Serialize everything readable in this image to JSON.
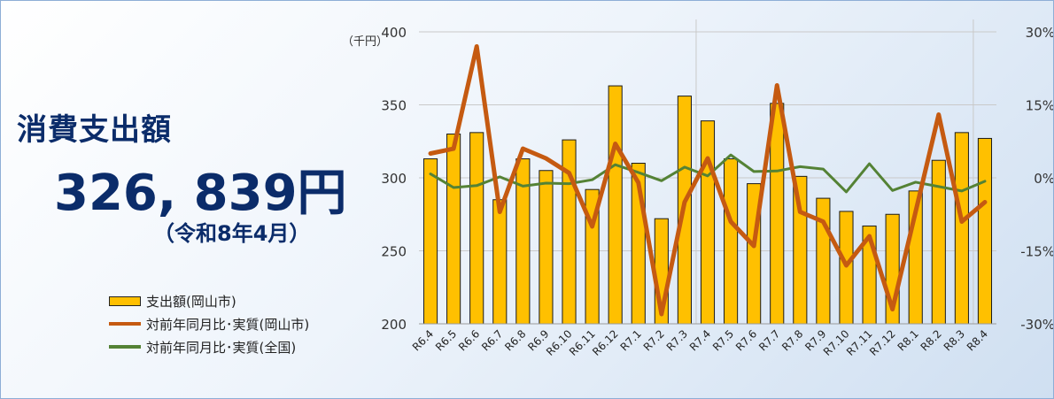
{
  "headline": "消費支出額",
  "amount": "326, 839円",
  "period": "（令和8年4月）",
  "chart_data": {
    "type": "bar",
    "categories": [
      "R6.4",
      "R6.5",
      "R6.6",
      "R6.7",
      "R6.8",
      "R6.9",
      "R6.10",
      "R6.11",
      "R6.12",
      "R7.1",
      "R7.2",
      "R7.3",
      "R7.4",
      "R7.5",
      "R7.6",
      "R7.7",
      "R7.8",
      "R7.9",
      "R7.10",
      "R7.11",
      "R7.12",
      "R8.1",
      "R8.2",
      "R8.3",
      "R8.4"
    ],
    "left_axis": {
      "unit": "（千円）",
      "min": 200,
      "max": 400,
      "ticks": [
        "200",
        "250",
        "300",
        "350",
        "400"
      ]
    },
    "right_axis": {
      "min": -30,
      "max": 30,
      "ticks": [
        "-30%",
        "-15%",
        "0%",
        "15%",
        "30%"
      ]
    },
    "series": [
      {
        "name": "支出額(岡山市)",
        "type": "bar",
        "axis": "left",
        "values": [
          313,
          330,
          331,
          285,
          313,
          305,
          326,
          292,
          363,
          310,
          272,
          356,
          339,
          313,
          296,
          351,
          301,
          286,
          277,
          267,
          275,
          291,
          312,
          331,
          327
        ]
      },
      {
        "name": "対前年同月比･実質(岡山市)",
        "type": "line",
        "axis": "right",
        "values": [
          5,
          6,
          27,
          -7,
          6,
          4,
          1,
          -10,
          7,
          -1,
          -28,
          -5,
          4,
          -9,
          -14,
          19,
          -7,
          -9,
          -18,
          -12,
          -27,
          -7,
          13,
          -9,
          -5
        ]
      },
      {
        "name": "対前年同月比･実質(全国)",
        "type": "line",
        "axis": "right",
        "values": [
          0.8,
          -2,
          -1.6,
          0.2,
          -1.7,
          -1.1,
          -1.2,
          -0.4,
          2.7,
          1.1,
          -0.6,
          2.2,
          0.4,
          4.7,
          1.3,
          1.4,
          2.3,
          1.8,
          -2.9,
          2.9,
          -2.6,
          -0.9,
          -1.8,
          -2.7,
          -0.7
        ]
      }
    ],
    "colors": {
      "bar": "#ffc000",
      "bar_edge": "#1a1a1a",
      "okayama": "#c55a11",
      "national": "#548235"
    },
    "grid": true,
    "legend_position": "bottom-left"
  }
}
